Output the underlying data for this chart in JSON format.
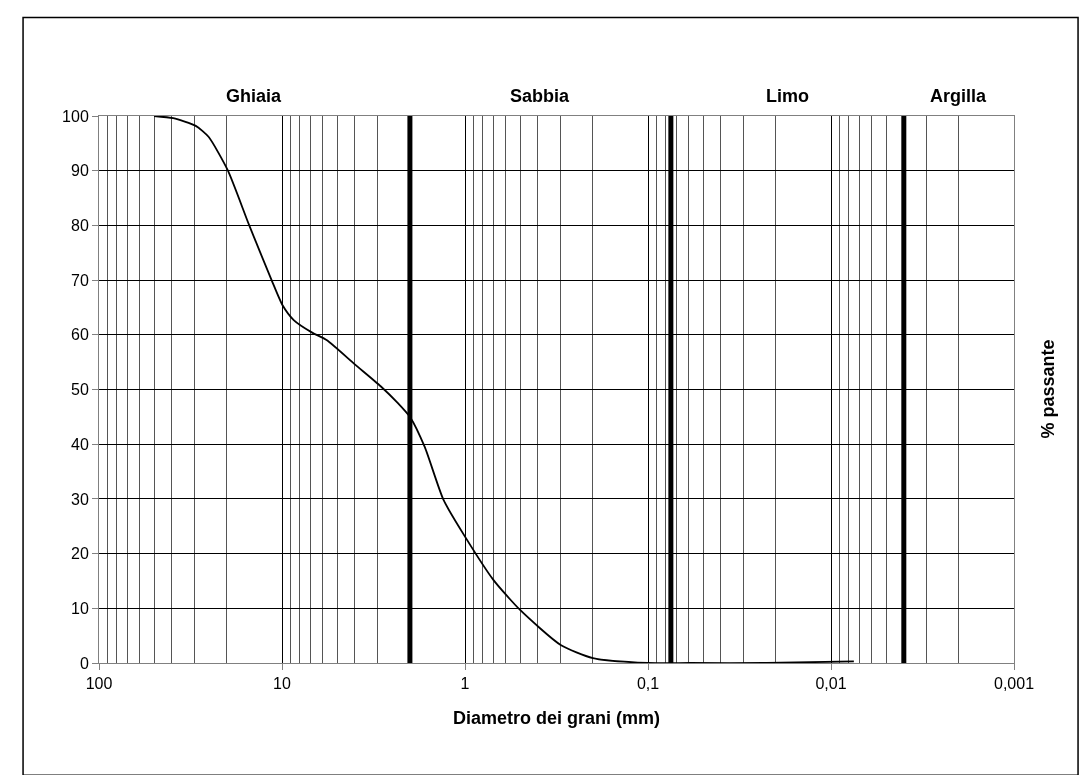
{
  "chart_data": {
    "type": "line",
    "xlabel": "Diametro dei grani (mm)",
    "ylabel": "% passante",
    "annotations": [
      "Ghiaia",
      "Sabbia",
      "Limo",
      "Argilla"
    ],
    "log": "x",
    "grid": true,
    "marker": "none",
    "line_style": "solid",
    "xlim": [
      100,
      0.001
    ],
    "xticks": [
      {
        "value": 100,
        "label": "100"
      },
      {
        "value": 10,
        "label": "10"
      },
      {
        "value": 1,
        "label": "1"
      },
      {
        "value": 0.1,
        "label": "0,1"
      },
      {
        "value": 0.01,
        "label": "0,01"
      },
      {
        "value": 0.001,
        "label": "0,001"
      }
    ],
    "ylim": [
      0,
      100
    ],
    "yticks": [
      0,
      10,
      20,
      30,
      40,
      50,
      60,
      70,
      80,
      90,
      100
    ],
    "ref_lines": [
      {
        "axis": "x",
        "value": 2,
        "color": "#000000"
      },
      {
        "axis": "x",
        "value": 0.075,
        "color": "#000000"
      },
      {
        "axis": "x",
        "value": 0.004,
        "color": "#000000"
      }
    ],
    "series": [
      {
        "color": "#000000",
        "x": [
          50,
          39.3,
          29.6,
          25.2,
          19.8,
          15.1,
          11.4,
          9.93,
          8.63,
          6.84,
          5.68,
          4.0,
          2.89,
          2.34,
          1.99,
          1.66,
          1.31,
          1.0,
          0.7,
          0.5,
          0.3,
          0.2,
          0.1,
          0.059,
          0.0225,
          0.0075
        ],
        "values": [
          100,
          99.6,
          98.2,
          96.2,
          90.1,
          80.0,
          70.0,
          65.4,
          62.7,
          60.4,
          59.0,
          54.6,
          50.6,
          47.6,
          44.9,
          39.5,
          29.8,
          23.1,
          15.2,
          9.7,
          3.3,
          0.9,
          0,
          0,
          0,
          0.3
        ]
      }
    ]
  }
}
